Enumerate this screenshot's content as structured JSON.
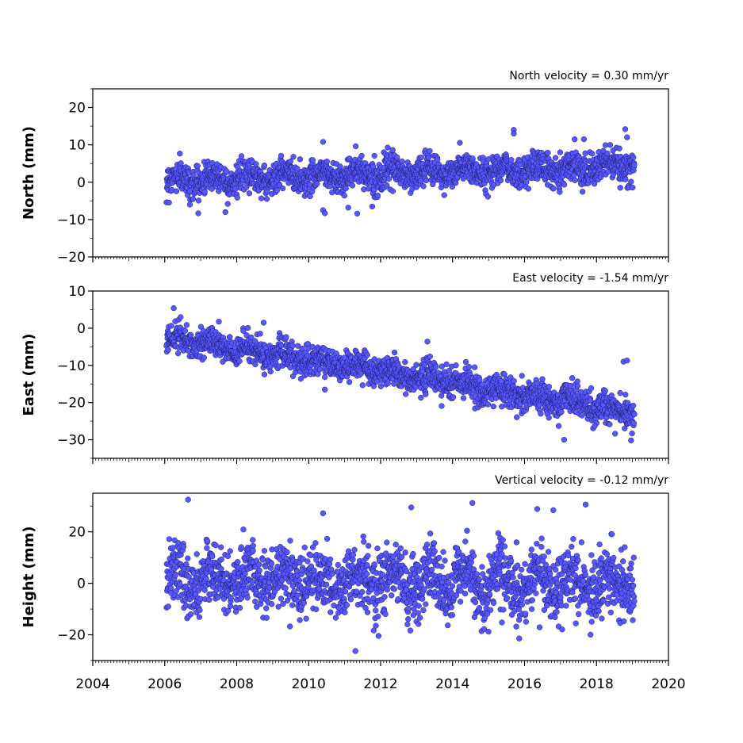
{
  "chart_data": [
    {
      "type": "scatter",
      "title": "North velocity = 0.30 mm/yr",
      "ylabel": "North (mm)",
      "xlabel": "",
      "xlim": [
        2004,
        2020
      ],
      "ylim": [
        -20,
        25
      ],
      "yticks": [
        -20,
        -10,
        0,
        10,
        20
      ],
      "xticks": [
        2004,
        2006,
        2008,
        2010,
        2012,
        2014,
        2016,
        2018,
        2020
      ],
      "show_xtick_labels": false,
      "grid": false,
      "marker_color": "#5757ff",
      "time_span": [
        2006.05,
        2019.05
      ],
      "trend": {
        "slope": 0.3,
        "intercept_at_2006": 0.5
      },
      "scatter_sd": 2.0,
      "seasonal_amplitude": 1.2,
      "outliers": [
        {
          "x": 2010.4,
          "y": 10.8
        },
        {
          "x": 2010.4,
          "y": -7.5
        },
        {
          "x": 2010.45,
          "y": -8.3
        },
        {
          "x": 2011.1,
          "y": -6.8
        },
        {
          "x": 2011.35,
          "y": -8.4
        },
        {
          "x": 2015.7,
          "y": 14.0
        },
        {
          "x": 2015.7,
          "y": 13.0
        },
        {
          "x": 2017.65,
          "y": 11.5
        },
        {
          "x": 2018.8,
          "y": 14.2
        },
        {
          "x": 2018.85,
          "y": 12.0
        },
        {
          "x": 2006.7,
          "y": -6.0
        },
        {
          "x": 2007.75,
          "y": -5.8
        }
      ]
    },
    {
      "type": "scatter",
      "title": "East velocity = -1.54 mm/yr",
      "ylabel": "East (mm)",
      "xlabel": "",
      "xlim": [
        2004,
        2020
      ],
      "ylim": [
        -35,
        10
      ],
      "yticks": [
        -30,
        -20,
        -10,
        0,
        10
      ],
      "xticks": [
        2004,
        2006,
        2008,
        2010,
        2012,
        2014,
        2016,
        2018,
        2020
      ],
      "show_xtick_labels": false,
      "grid": false,
      "marker_color": "#5757ff",
      "time_span": [
        2006.05,
        2019.05
      ],
      "trend": {
        "slope": -1.54,
        "intercept_at_2006": -2.5
      },
      "scatter_sd": 2.0,
      "seasonal_amplitude": 1.0,
      "outliers": [
        {
          "x": 2006.25,
          "y": 5.4
        },
        {
          "x": 2008.75,
          "y": 1.5
        },
        {
          "x": 2010.45,
          "y": -16.5
        },
        {
          "x": 2013.3,
          "y": -3.6
        },
        {
          "x": 2016.45,
          "y": -23.0
        },
        {
          "x": 2017.1,
          "y": -30.0
        },
        {
          "x": 2016.95,
          "y": -26.3
        },
        {
          "x": 2017.95,
          "y": -26.3
        },
        {
          "x": 2018.75,
          "y": -9.0
        },
        {
          "x": 2018.85,
          "y": -8.7
        }
      ]
    },
    {
      "type": "scatter",
      "title": "Vertical velocity = -0.12 mm/yr",
      "ylabel": "Height (mm)",
      "xlabel": "",
      "xlim": [
        2004,
        2020
      ],
      "ylim": [
        -30,
        35
      ],
      "yticks": [
        -20,
        0,
        20
      ],
      "xticks": [
        2004,
        2006,
        2008,
        2010,
        2012,
        2014,
        2016,
        2018,
        2020
      ],
      "show_xtick_labels": true,
      "grid": false,
      "marker_color": "#5757ff",
      "time_span": [
        2006.05,
        2019.05
      ],
      "trend": {
        "slope": -0.12,
        "intercept_at_2006": 1.5
      },
      "scatter_sd": 6.0,
      "seasonal_amplitude": 4.0,
      "outliers": [
        {
          "x": 2006.65,
          "y": 32.5
        },
        {
          "x": 2014.55,
          "y": 31.2
        },
        {
          "x": 2012.85,
          "y": 29.5
        },
        {
          "x": 2017.7,
          "y": 30.6
        },
        {
          "x": 2011.3,
          "y": -26.3
        },
        {
          "x": 2016.8,
          "y": 28.4
        },
        {
          "x": 2010.4,
          "y": 27.2
        },
        {
          "x": 2015.0,
          "y": -18.8
        }
      ]
    }
  ]
}
